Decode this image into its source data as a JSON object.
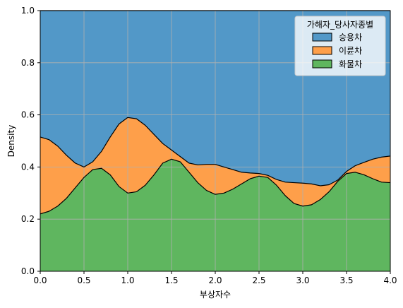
{
  "chart_data": {
    "type": "area",
    "stacked": true,
    "normalized": true,
    "xlabel": "부상자수",
    "ylabel": "Density",
    "xlim": [
      0,
      4
    ],
    "ylim": [
      0,
      1
    ],
    "xticks": [
      "0.0",
      "0.5",
      "1.0",
      "1.5",
      "2.0",
      "2.5",
      "3.0",
      "3.5",
      "4.0"
    ],
    "yticks": [
      "0.0",
      "0.2",
      "0.4",
      "0.6",
      "0.8",
      "1.0"
    ],
    "grid": true,
    "legend": {
      "title": "가해자_당사자종별",
      "placement": "top-right",
      "entries": [
        "승용차",
        "이륜차",
        "화물차"
      ]
    },
    "x": [
      0.0,
      0.1,
      0.2,
      0.3,
      0.4,
      0.5,
      0.6,
      0.7,
      0.8,
      0.9,
      1.0,
      1.1,
      1.2,
      1.3,
      1.4,
      1.5,
      1.6,
      1.7,
      1.8,
      1.9,
      2.0,
      2.1,
      2.2,
      2.3,
      2.4,
      2.5,
      2.6,
      2.7,
      2.8,
      2.9,
      3.0,
      3.1,
      3.2,
      3.3,
      3.4,
      3.5,
      3.6,
      3.7,
      3.8,
      3.9,
      4.0
    ],
    "series": [
      {
        "name": "화물차",
        "color": "#5fb65f",
        "boundary": [
          0.22,
          0.23,
          0.25,
          0.28,
          0.32,
          0.36,
          0.39,
          0.395,
          0.37,
          0.325,
          0.3,
          0.305,
          0.33,
          0.37,
          0.415,
          0.43,
          0.42,
          0.38,
          0.34,
          0.31,
          0.295,
          0.3,
          0.315,
          0.335,
          0.355,
          0.365,
          0.36,
          0.33,
          0.29,
          0.26,
          0.25,
          0.255,
          0.275,
          0.305,
          0.345,
          0.375,
          0.38,
          0.37,
          0.355,
          0.342,
          0.34
        ]
      },
      {
        "name": "이륜차",
        "color": "#fe9f4a",
        "boundary": [
          0.515,
          0.505,
          0.48,
          0.445,
          0.415,
          0.4,
          0.42,
          0.46,
          0.515,
          0.565,
          0.59,
          0.585,
          0.56,
          0.525,
          0.49,
          0.465,
          0.44,
          0.415,
          0.408,
          0.41,
          0.41,
          0.4,
          0.39,
          0.38,
          0.377,
          0.375,
          0.368,
          0.352,
          0.342,
          0.34,
          0.338,
          0.335,
          0.328,
          0.332,
          0.35,
          0.383,
          0.405,
          0.418,
          0.43,
          0.438,
          0.442
        ]
      },
      {
        "name": "승용차",
        "color": "#5298c8",
        "boundary": [
          1,
          1,
          1,
          1,
          1,
          1,
          1,
          1,
          1,
          1,
          1,
          1,
          1,
          1,
          1,
          1,
          1,
          1,
          1,
          1,
          1,
          1,
          1,
          1,
          1,
          1,
          1,
          1,
          1,
          1,
          1,
          1,
          1,
          1,
          1,
          1,
          1,
          1,
          1,
          1,
          1
        ]
      }
    ]
  }
}
